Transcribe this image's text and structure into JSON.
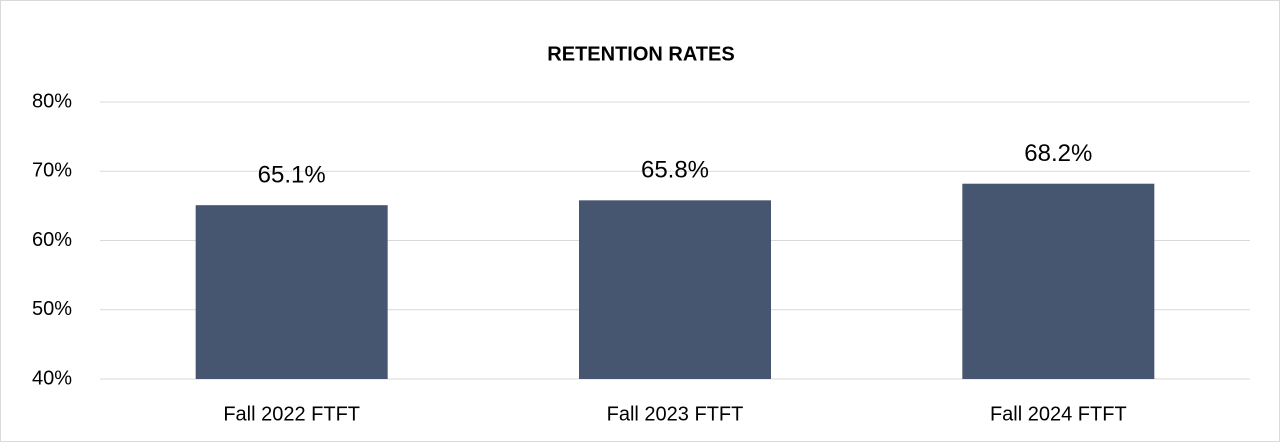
{
  "chart_data": {
    "type": "bar",
    "title": "RETENTION RATES",
    "categories": [
      "Fall 2022 FTFT",
      "Fall 2023 FTFT",
      "Fall 2024 FTFT"
    ],
    "values": [
      65.1,
      65.8,
      68.2
    ],
    "value_labels": [
      "65.1%",
      "65.8%",
      "68.2%"
    ],
    "color": "#465670",
    "ylim": [
      40,
      80
    ],
    "yticks": [
      {
        "value": 40,
        "label": "40%"
      },
      {
        "value": 50,
        "label": "50%"
      },
      {
        "value": 60,
        "label": "60%"
      },
      {
        "value": 70,
        "label": "70%"
      },
      {
        "value": 80,
        "label": "80%"
      }
    ],
    "grid": true
  }
}
